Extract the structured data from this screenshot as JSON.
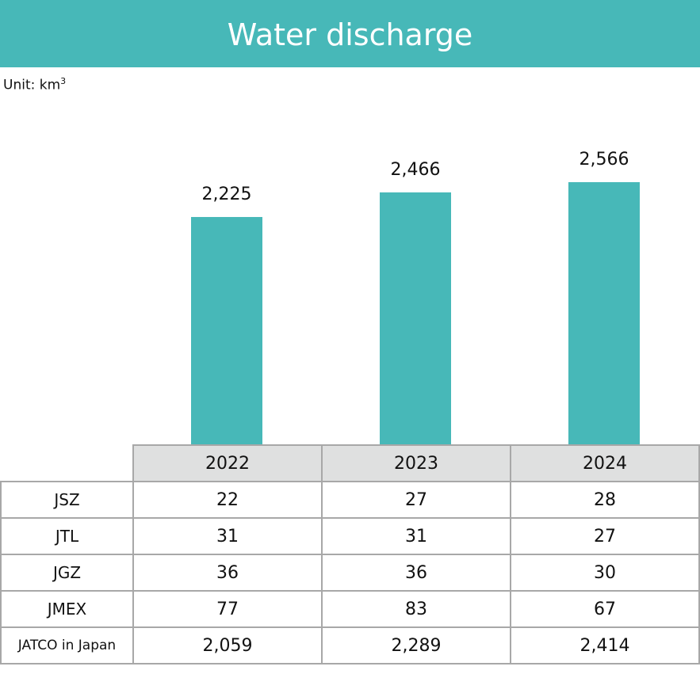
{
  "chart_data": {
    "type": "bar",
    "title": "Water discharge",
    "unit_label": "Unit: km",
    "unit_superscript": "3",
    "categories": [
      "2022",
      "2023",
      "2024"
    ],
    "values": [
      2225,
      2466,
      2566
    ],
    "value_labels": [
      "2,225",
      "2,466",
      "2,566"
    ],
    "ylim": [
      0,
      2566
    ],
    "bar_color": "#47b8b8",
    "grid": false,
    "table": {
      "header": [
        "2022",
        "2023",
        "2024"
      ],
      "rows": [
        {
          "label": "JSZ",
          "values": [
            "22",
            "27",
            "28"
          ]
        },
        {
          "label": "JTL",
          "values": [
            "31",
            "31",
            "27"
          ]
        },
        {
          "label": "JGZ",
          "values": [
            "36",
            "36",
            "30"
          ]
        },
        {
          "label": "JMEX",
          "values": [
            "77",
            "83",
            "67"
          ]
        },
        {
          "label": "JATCO in Japan",
          "values": [
            "2,059",
            "2,289",
            "2,414"
          ]
        }
      ]
    }
  }
}
